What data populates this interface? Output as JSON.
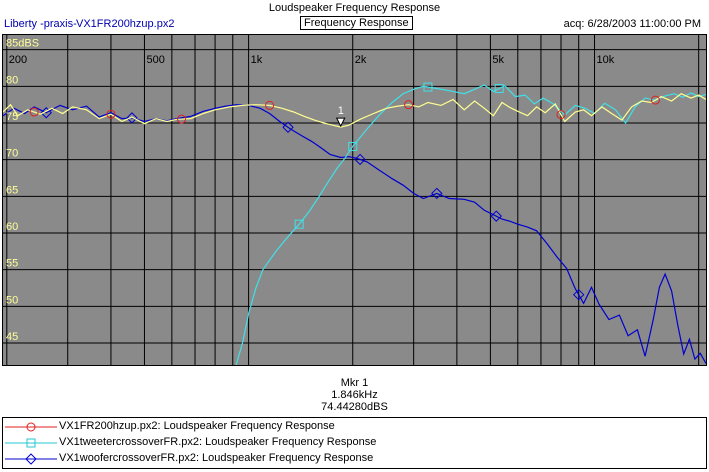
{
  "header": {
    "title": "Loudspeaker Frequency Response",
    "app": "Liberty -praxis-",
    "file": "VX1FR200hzup.px2",
    "mode": "Frequency Response",
    "acq": "acq: 6/28/2003 11:00:00 PM"
  },
  "marker": {
    "label": "Mkr 1",
    "freq": "1.846kHz",
    "level": "74.44280dBS",
    "tag": "1"
  },
  "legend": [
    {
      "text": "VX1FR200hzup.px2:  Loudspeaker Frequency Response",
      "color": "#e02020",
      "symbol": "circle-icon"
    },
    {
      "text": "VX1tweetercrossoverFR.px2:  Loudspeaker Frequency Response",
      "color": "#20c8d0",
      "symbol": "square-icon"
    },
    {
      "text": "VX1woofercrossoverFR.px2:  Loudspeaker Frequency Response",
      "color": "#0000d0",
      "symbol": "diamond-icon"
    }
  ],
  "colors": {
    "plot_bg": "#8a8a8a",
    "grid": "#000000",
    "labels": "#ffff99",
    "overall": "#ffff90",
    "tweeter": "#40e0e8",
    "woofer": "#0000d0"
  },
  "chart_data": {
    "type": "line",
    "x_scale": "log",
    "xlim": [
      195,
      21000
    ],
    "ylim": [
      42,
      87
    ],
    "x_tick_labels": [
      {
        "value": 200,
        "label": "200"
      },
      {
        "value": 500,
        "label": "500"
      },
      {
        "value": 1000,
        "label": "1k"
      },
      {
        "value": 2000,
        "label": "2k"
      },
      {
        "value": 5000,
        "label": "5k"
      },
      {
        "value": 10000,
        "label": "10k"
      }
    ],
    "x_grid": [
      200,
      300,
      400,
      500,
      600,
      700,
      800,
      900,
      1000,
      2000,
      3000,
      4000,
      5000,
      6000,
      7000,
      8000,
      9000,
      10000,
      20000
    ],
    "y_ticks": [
      {
        "value": 85,
        "label": "85dBS"
      },
      {
        "value": 80,
        "label": "80"
      },
      {
        "value": 75,
        "label": "75"
      },
      {
        "value": 70,
        "label": "70"
      },
      {
        "value": 65,
        "label": "65"
      },
      {
        "value": 60,
        "label": "60"
      },
      {
        "value": 55,
        "label": "55"
      },
      {
        "value": 50,
        "label": "50"
      },
      {
        "value": 45,
        "label": "45"
      }
    ],
    "marker_point": {
      "x": 1846,
      "y": 74.4428
    },
    "series": [
      {
        "name": "VX1FR200hzup.px2:  Loudspeaker Frequency Response",
        "key": "overall",
        "points": [
          [
            195,
            76.5
          ],
          [
            205,
            77.5
          ],
          [
            215,
            76
          ],
          [
            230,
            76.8
          ],
          [
            250,
            76.2
          ],
          [
            270,
            77
          ],
          [
            290,
            76.3
          ],
          [
            310,
            77.2
          ],
          [
            340,
            76.8
          ],
          [
            370,
            75.6
          ],
          [
            400,
            76.2
          ],
          [
            430,
            75.2
          ],
          [
            460,
            75.8
          ],
          [
            500,
            74.9
          ],
          [
            540,
            75.6
          ],
          [
            580,
            75.2
          ],
          [
            620,
            75.5
          ],
          [
            680,
            75.6
          ],
          [
            740,
            76.3
          ],
          [
            800,
            76.8
          ],
          [
            880,
            77.2
          ],
          [
            960,
            77.4
          ],
          [
            1050,
            77.5
          ],
          [
            1150,
            77.4
          ],
          [
            1250,
            77
          ],
          [
            1350,
            76.5
          ],
          [
            1450,
            75.9
          ],
          [
            1550,
            75.4
          ],
          [
            1650,
            75
          ],
          [
            1750,
            74.7
          ],
          [
            1846,
            74.44
          ],
          [
            1950,
            74.7
          ],
          [
            2100,
            75.5
          ],
          [
            2300,
            76.3
          ],
          [
            2500,
            77
          ],
          [
            2700,
            77.3
          ],
          [
            2900,
            77.5
          ],
          [
            3100,
            77.2
          ],
          [
            3300,
            77.8
          ],
          [
            3600,
            77.4
          ],
          [
            3900,
            78.2
          ],
          [
            4200,
            76.8
          ],
          [
            4500,
            78
          ],
          [
            4800,
            77
          ],
          [
            5100,
            76
          ],
          [
            5400,
            77.8
          ],
          [
            5700,
            77.1
          ],
          [
            6000,
            76.6
          ],
          [
            6400,
            76
          ],
          [
            6800,
            77.2
          ],
          [
            7200,
            76.4
          ],
          [
            7700,
            77.6
          ],
          [
            8200,
            75.2
          ],
          [
            8800,
            76.5
          ],
          [
            9300,
            76.8
          ],
          [
            9800,
            76
          ],
          [
            10500,
            77.2
          ],
          [
            11200,
            76.3
          ],
          [
            12000,
            75.4
          ],
          [
            12800,
            77.2
          ],
          [
            13700,
            78
          ],
          [
            14600,
            77.8
          ],
          [
            15600,
            78.6
          ],
          [
            16700,
            78
          ],
          [
            17800,
            79
          ],
          [
            19000,
            78.4
          ],
          [
            20000,
            78.8
          ],
          [
            21000,
            78.2
          ]
        ],
        "markers": [
          240,
          400,
          640,
          1150,
          2900,
          8000,
          15000
        ]
      },
      {
        "name": "VX1tweetercrossoverFR.px2:  Loudspeaker Frequency Response",
        "key": "tweeter",
        "points": [
          [
            920,
            42
          ],
          [
            960,
            45
          ],
          [
            1000,
            49
          ],
          [
            1050,
            52.5
          ],
          [
            1100,
            55
          ],
          [
            1200,
            57.5
          ],
          [
            1300,
            59.5
          ],
          [
            1400,
            61.2
          ],
          [
            1500,
            63
          ],
          [
            1600,
            65
          ],
          [
            1700,
            67
          ],
          [
            1800,
            68.8
          ],
          [
            1900,
            70.2
          ],
          [
            2000,
            71.8
          ],
          [
            2200,
            74.2
          ],
          [
            2400,
            76.2
          ],
          [
            2600,
            77.8
          ],
          [
            2800,
            79
          ],
          [
            3000,
            79.6
          ],
          [
            3200,
            80
          ],
          [
            3500,
            79.7
          ],
          [
            3800,
            79.4
          ],
          [
            4200,
            79
          ],
          [
            4500,
            79.6
          ],
          [
            4800,
            80.2
          ],
          [
            5100,
            79.3
          ],
          [
            5500,
            80.1
          ],
          [
            5900,
            78.6
          ],
          [
            6300,
            78.8
          ],
          [
            6700,
            77.6
          ],
          [
            7100,
            78.4
          ],
          [
            7600,
            77.6
          ],
          [
            8200,
            76.1
          ],
          [
            8800,
            77.4
          ],
          [
            9400,
            77
          ],
          [
            10000,
            76.3
          ],
          [
            10700,
            77.7
          ],
          [
            11500,
            76.8
          ],
          [
            12300,
            75
          ],
          [
            13100,
            77.2
          ],
          [
            14000,
            78.4
          ],
          [
            15000,
            78.1
          ],
          [
            16000,
            78.7
          ],
          [
            17000,
            79
          ],
          [
            18000,
            78.5
          ],
          [
            19000,
            79.1
          ],
          [
            20000,
            78.6
          ],
          [
            21000,
            78.9
          ]
        ],
        "markers": [
          1400,
          2000,
          3300,
          5300
        ]
      },
      {
        "name": "VX1woofercrossoverFR.px2:  Loudspeaker Frequency Response",
        "key": "woofer",
        "points": [
          [
            195,
            76
          ],
          [
            210,
            77
          ],
          [
            225,
            76.3
          ],
          [
            240,
            77.2
          ],
          [
            260,
            76.4
          ],
          [
            285,
            77.4
          ],
          [
            310,
            76.8
          ],
          [
            340,
            77.3
          ],
          [
            370,
            75.8
          ],
          [
            400,
            76.4
          ],
          [
            430,
            75.6
          ],
          [
            460,
            75.7
          ],
          [
            500,
            75.2
          ],
          [
            540,
            75.6
          ],
          [
            580,
            75.3
          ],
          [
            620,
            75.6
          ],
          [
            680,
            75.9
          ],
          [
            740,
            76.6
          ],
          [
            800,
            77
          ],
          [
            860,
            77.3
          ],
          [
            920,
            77.5
          ],
          [
            1000,
            77.4
          ],
          [
            1080,
            77
          ],
          [
            1150,
            76.3
          ],
          [
            1230,
            75.2
          ],
          [
            1320,
            74.2
          ],
          [
            1420,
            73.3
          ],
          [
            1520,
            72.5
          ],
          [
            1620,
            71.6
          ],
          [
            1720,
            70.7
          ],
          [
            1846,
            70.3
          ],
          [
            1950,
            70.4
          ],
          [
            2050,
            70.2
          ],
          [
            2200,
            69.7
          ],
          [
            2400,
            68.5
          ],
          [
            2600,
            67.4
          ],
          [
            2800,
            66.5
          ],
          [
            3000,
            65.4
          ],
          [
            3200,
            64.7
          ],
          [
            3500,
            65.4
          ],
          [
            3800,
            64.7
          ],
          [
            4200,
            64.6
          ],
          [
            4500,
            64.2
          ],
          [
            4800,
            63.1
          ],
          [
            5100,
            62.5
          ],
          [
            5400,
            61.9
          ],
          [
            5700,
            61.6
          ],
          [
            6000,
            61.2
          ],
          [
            6400,
            60.8
          ],
          [
            6800,
            60.3
          ],
          [
            7300,
            58.5
          ],
          [
            7800,
            56.7
          ],
          [
            8300,
            55.2
          ],
          [
            8800,
            52.4
          ],
          [
            9300,
            50.4
          ],
          [
            9800,
            52.6
          ],
          [
            10300,
            50.3
          ],
          [
            11000,
            48.2
          ],
          [
            11800,
            48.8
          ],
          [
            12500,
            46
          ],
          [
            13300,
            46.8
          ],
          [
            14000,
            43.2
          ],
          [
            14800,
            48.3
          ],
          [
            15400,
            52.6
          ],
          [
            16000,
            54.4
          ],
          [
            16700,
            52.1
          ],
          [
            17400,
            47.5
          ],
          [
            18100,
            43.5
          ],
          [
            18800,
            45.5
          ],
          [
            19500,
            42.8
          ],
          [
            20200,
            43.6
          ],
          [
            21000,
            42.2
          ]
        ],
        "markers": [
          260,
          460,
          1300,
          2100,
          3500,
          5200,
          9000
        ]
      }
    ]
  }
}
